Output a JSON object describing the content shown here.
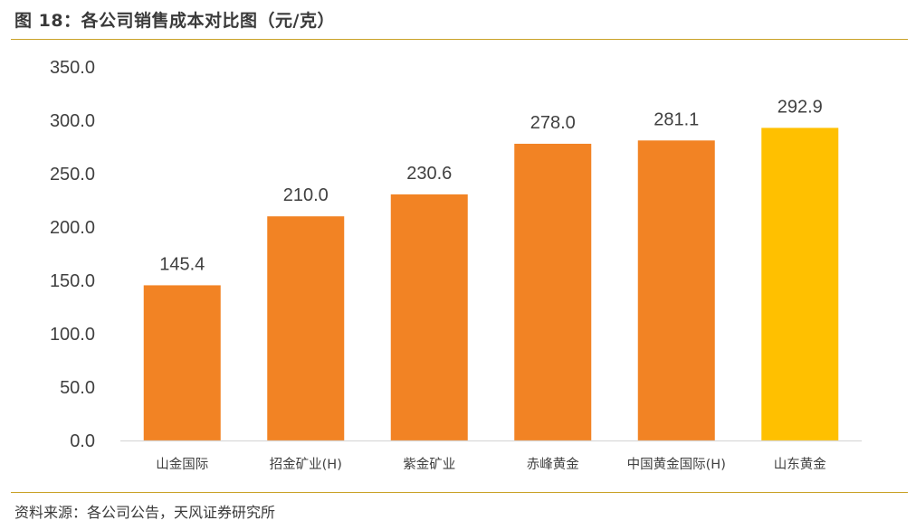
{
  "header": {
    "title": "图 18：各公司销售成本对比图（元/克）"
  },
  "footer": {
    "source": "资料来源：各公司公告，天风证券研究所"
  },
  "colors": {
    "bar": "#f28324",
    "highlight": "#ffc000",
    "rule": "#c9a227",
    "axis": "#d9d9d9"
  },
  "chart_data": {
    "type": "bar",
    "title": "各公司销售成本对比图（元/克）",
    "xlabel": "",
    "ylabel": "",
    "ylim": [
      0,
      350
    ],
    "yticks": [
      "0.0",
      "50.0",
      "100.0",
      "150.0",
      "200.0",
      "250.0",
      "300.0",
      "350.0"
    ],
    "categories": [
      "山金国际",
      "招金矿业(H)",
      "紫金矿业",
      "赤峰黄金",
      "中国黄金国际(H)",
      "山东黄金"
    ],
    "values": [
      145.4,
      210.0,
      230.6,
      278.0,
      281.1,
      292.9
    ],
    "value_labels": [
      "145.4",
      "210.0",
      "230.6",
      "278.0",
      "281.1",
      "292.9"
    ],
    "highlight_index": 5,
    "grid": false,
    "legend": "none"
  }
}
